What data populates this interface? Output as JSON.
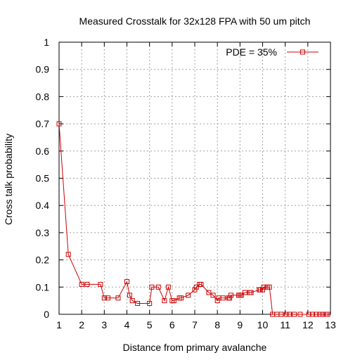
{
  "chart_data": {
    "type": "line",
    "title": "Measured Crosstalk for 32x128 FPA with 50 um pitch",
    "xlabel": "Distance from primary avalanche",
    "ylabel": "Cross talk probability",
    "xlim": [
      1,
      13
    ],
    "ylim": [
      0,
      1
    ],
    "x_ticks": [
      1,
      2,
      3,
      4,
      5,
      6,
      7,
      8,
      9,
      10,
      11,
      12,
      13
    ],
    "y_ticks": [
      0,
      0.1,
      0.2,
      0.3,
      0.4,
      0.5,
      0.6,
      0.7,
      0.8,
      0.9,
      1
    ],
    "grid": true,
    "legend_position": "top-right",
    "series": [
      {
        "name": "PDE = 35%",
        "color": "#cc0000",
        "marker": "square",
        "x": [
          1.0,
          1.41,
          2.0,
          2.24,
          2.83,
          3.0,
          3.16,
          3.61,
          4.0,
          4.12,
          4.24,
          4.47,
          5.0,
          5.1,
          5.39,
          5.66,
          5.83,
          6.0,
          6.08,
          6.32,
          6.4,
          6.71,
          7.0,
          7.07,
          7.21,
          7.28,
          7.62,
          7.81,
          8.0,
          8.06,
          8.25,
          8.49,
          8.54,
          8.6,
          8.94,
          9.0,
          9.06,
          9.22,
          9.43,
          9.49,
          9.85,
          9.9,
          10.0,
          10.05,
          10.2,
          10.3,
          10.44,
          10.63,
          10.82,
          11.05,
          11.18,
          11.4,
          11.66,
          12.04,
          12.21,
          12.37,
          12.53,
          12.65,
          12.8,
          12.88
        ],
        "y": [
          0.7,
          0.22,
          0.11,
          0.11,
          0.11,
          0.06,
          0.06,
          0.06,
          0.12,
          0.07,
          0.05,
          0.04,
          0.04,
          0.1,
          0.1,
          0.05,
          0.1,
          0.05,
          0.05,
          0.06,
          0.06,
          0.07,
          0.09,
          0.1,
          0.11,
          0.11,
          0.08,
          0.07,
          0.05,
          0.06,
          0.06,
          0.06,
          0.06,
          0.07,
          0.07,
          0.07,
          0.07,
          0.08,
          0.08,
          0.08,
          0.09,
          0.09,
          0.09,
          0.1,
          0.1,
          0.1,
          0,
          0,
          0,
          0,
          0,
          0,
          0,
          0,
          0,
          0,
          0,
          0,
          0,
          0
        ]
      }
    ]
  }
}
